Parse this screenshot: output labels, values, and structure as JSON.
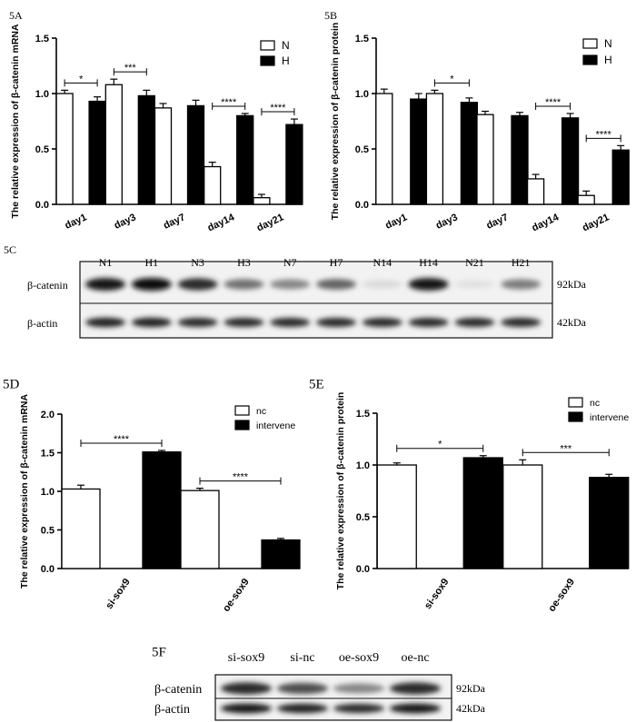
{
  "chart_data": [
    {
      "id": "5A",
      "type": "bar",
      "panel_label": "5A",
      "ylabel": "The relative expression of β-catenin mRNA",
      "ylim": [
        0,
        1.5
      ],
      "yticks": [
        "0.0",
        "0.5",
        "1.0",
        "1.5"
      ],
      "categories": [
        "day1",
        "day3",
        "day7",
        "day14",
        "day21"
      ],
      "series": [
        {
          "name": "N",
          "values": [
            1.0,
            1.08,
            0.87,
            0.34,
            0.06
          ],
          "errors": [
            0.03,
            0.05,
            0.04,
            0.04,
            0.03
          ]
        },
        {
          "name": "H",
          "values": [
            0.93,
            0.98,
            0.89,
            0.8,
            0.72
          ],
          "errors": [
            0.04,
            0.05,
            0.05,
            0.02,
            0.05
          ]
        }
      ],
      "significance": [
        {
          "category": "day1",
          "label": "*"
        },
        {
          "category": "day3",
          "label": "***"
        },
        {
          "category": "day14",
          "label": "****"
        },
        {
          "category": "day21",
          "label": "****"
        }
      ],
      "legend": "top-right"
    },
    {
      "id": "5B",
      "type": "bar",
      "panel_label": "5B",
      "ylabel": "The relative expression of β-catenin protein",
      "ylim": [
        0,
        1.5
      ],
      "yticks": [
        "0.0",
        "0.5",
        "1.0",
        "1.5"
      ],
      "categories": [
        "day1",
        "day3",
        "day7",
        "day14",
        "day21"
      ],
      "series": [
        {
          "name": "N",
          "values": [
            1.0,
            1.0,
            0.81,
            0.23,
            0.08
          ],
          "errors": [
            0.04,
            0.03,
            0.03,
            0.04,
            0.04
          ]
        },
        {
          "name": "H",
          "values": [
            0.95,
            0.92,
            0.8,
            0.78,
            0.49
          ],
          "errors": [
            0.05,
            0.04,
            0.03,
            0.04,
            0.04
          ]
        }
      ],
      "significance": [
        {
          "category": "day3",
          "label": "*"
        },
        {
          "category": "day14",
          "label": "****"
        },
        {
          "category": "day21",
          "label": "****"
        }
      ],
      "legend": "top-right"
    },
    {
      "id": "5D",
      "type": "bar",
      "panel_label": "5D",
      "ylabel": "The relative expression of β-catenin mRNA",
      "ylim": [
        0,
        2.0
      ],
      "yticks": [
        "0.0",
        "0.5",
        "1.0",
        "1.5",
        "2.0"
      ],
      "categories": [
        "si-sox9",
        "oe-sox9"
      ],
      "series": [
        {
          "name": "nc",
          "values": [
            1.03,
            1.01
          ],
          "errors": [
            0.05,
            0.03
          ]
        },
        {
          "name": "intervene",
          "values": [
            1.51,
            0.37
          ],
          "errors": [
            0.02,
            0.02
          ]
        }
      ],
      "significance": [
        {
          "category": "si-sox9",
          "label": "****"
        },
        {
          "category": "oe-sox9",
          "label": "****"
        }
      ],
      "legend": "top-right"
    },
    {
      "id": "5E",
      "type": "bar",
      "panel_label": "5E",
      "ylabel": "The relative expression of β-catenin protein",
      "ylim": [
        0,
        1.5
      ],
      "yticks": [
        "0.0",
        "0.5",
        "1.0",
        "1.5"
      ],
      "categories": [
        "si-sox9",
        "oe-sox9"
      ],
      "series": [
        {
          "name": "nc",
          "values": [
            1.0,
            1.0
          ],
          "errors": [
            0.02,
            0.05
          ]
        },
        {
          "name": "intervene",
          "values": [
            1.07,
            0.88
          ],
          "errors": [
            0.02,
            0.03
          ]
        }
      ],
      "significance": [
        {
          "category": "si-sox9",
          "label": "*"
        },
        {
          "category": "oe-sox9",
          "label": "***"
        }
      ],
      "legend": "top-right"
    }
  ],
  "blots": [
    {
      "id": "5C",
      "panel_label": "5C",
      "lanes": [
        "N1",
        "H1",
        "N3",
        "H3",
        "N7",
        "H7",
        "N14",
        "H14",
        "N21",
        "H21"
      ],
      "rows": [
        {
          "label": "β-catenin",
          "size": "92kDa",
          "intensity": [
            0.95,
            1.0,
            0.85,
            0.55,
            0.45,
            0.6,
            0.08,
            0.95,
            0.05,
            0.5
          ]
        },
        {
          "label": "β-actin",
          "size": "42kDa",
          "intensity": [
            0.9,
            0.9,
            0.85,
            0.85,
            0.85,
            0.85,
            0.85,
            0.85,
            0.85,
            0.85
          ]
        }
      ]
    },
    {
      "id": "5F",
      "panel_label": "5F",
      "lanes": [
        "si-sox9",
        "si-nc",
        "oe-sox9",
        "oe-nc"
      ],
      "rows": [
        {
          "label": "β-catenin",
          "size": "92kDa",
          "intensity": [
            0.85,
            0.7,
            0.45,
            0.85
          ]
        },
        {
          "label": "β-actin",
          "size": "42kDa",
          "intensity": [
            0.95,
            0.9,
            0.85,
            0.95
          ]
        }
      ]
    }
  ]
}
